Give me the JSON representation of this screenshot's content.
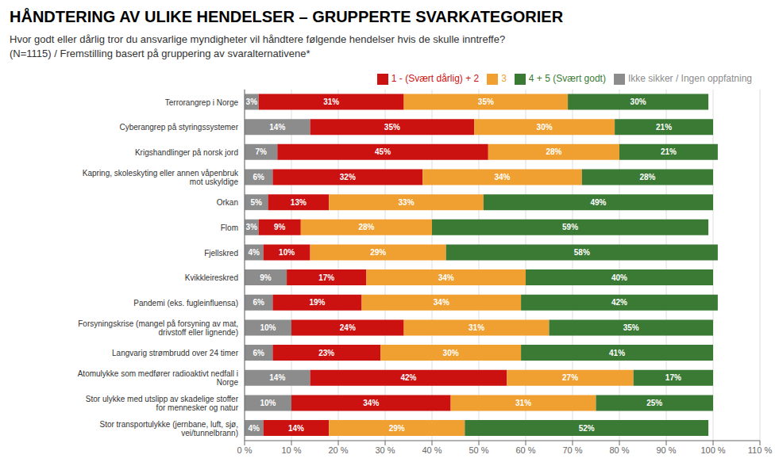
{
  "chart_data": {
    "type": "bar",
    "title": "HÅNDTERING AV ULIKE HENDELSER – GRUPPERTE SVARKATEGORIER",
    "subtitle": [
      "Hvor godt eller dårlig tror du ansvarlige myndigheter vil håndtere følgende hendelser hvis de skulle inntreffe?",
      "(N=1115) / Fremstilling basert på gruppering av svaralternativene*"
    ],
    "orientation": "horizontal",
    "stacked": true,
    "data_labels": true,
    "grid": true,
    "legend": "top",
    "categories": [
      "Terrorangrep i Norge",
      "Cyberangrep på styringssystemer",
      "Krigshandlinger på norsk jord",
      "Kapring, skoleskyting eller annen våpenbruk mot uskyldige",
      "Orkan",
      "Flom",
      "Fjellskred",
      "Kvikkleireskred",
      "Pandemi (eks. fugleinfluensa)",
      "Forsyningskrise (mangel på forsyning av mat, drivstoff eller lignende)",
      "Langvarig strømbrudd over 24 timer",
      "Atomulykke som medfører radioaktivt nedfall i Norge",
      "Stor ulykke med utslipp av skadelige stoffer for mennesker og natur",
      "Stor transportulykke (jernbane, luft, sjø, vei/tunnelbrann)"
    ],
    "series": [
      {
        "name": "Ikke sikker / Ingen oppfatning",
        "color": "#8c8c8c",
        "values": [
          3,
          14,
          7,
          6,
          5,
          3,
          4,
          9,
          6,
          10,
          6,
          14,
          10,
          4
        ],
        "value_labels": [
          "3%",
          "14%",
          "7%",
          "6%",
          "5%",
          "3%",
          "4%",
          "9%",
          "6%",
          "10%",
          "6%",
          "14%",
          "10%",
          "4%"
        ]
      },
      {
        "name": "1 - (Svært dårlig) + 2",
        "color": "#cc1111",
        "values": [
          31,
          35,
          45,
          32,
          13,
          9,
          10,
          17,
          19,
          24,
          23,
          42,
          34,
          14
        ],
        "value_labels": [
          "31%",
          "35%",
          "45%",
          "32%",
          "13%",
          "9%",
          "10%",
          "17%",
          "19%",
          "24%",
          "23%",
          "42%",
          "34%",
          "14%"
        ]
      },
      {
        "name": "3",
        "color": "#f0a030",
        "values": [
          35,
          30,
          28,
          34,
          33,
          28,
          29,
          34,
          34,
          31,
          30,
          27,
          31,
          29
        ],
        "value_labels": [
          "35%",
          "30%",
          "28%",
          "34%",
          "33%",
          "28%",
          "29%",
          "34%",
          "34%",
          "31%",
          "30%",
          "27%",
          "31%",
          "29%"
        ]
      },
      {
        "name": "4 + 5 (Svært godt)",
        "color": "#3a7a35",
        "values": [
          30,
          21,
          21,
          28,
          49,
          59,
          58,
          40,
          42,
          35,
          41,
          17,
          25,
          52
        ],
        "value_labels": [
          "30%",
          "21%",
          "21%",
          "28%",
          "49%",
          "59%",
          "58%",
          "40%",
          "42%",
          "35%",
          "41%",
          "17%",
          "25%",
          "52%"
        ]
      }
    ],
    "xlim": [
      0,
      110
    ],
    "xticks": [
      {
        "value": 0,
        "label": "0 %"
      },
      {
        "value": 10,
        "label": "10 %"
      },
      {
        "value": 20,
        "label": "20 %"
      },
      {
        "value": 30,
        "label": "30 %"
      },
      {
        "value": 40,
        "label": "40 %"
      },
      {
        "value": 50,
        "label": "50 %"
      },
      {
        "value": 60,
        "label": "60 %"
      },
      {
        "value": 70,
        "label": "70 %"
      },
      {
        "value": 80,
        "label": "80 %"
      },
      {
        "value": 90,
        "label": "90 %"
      },
      {
        "value": 100,
        "label": "100 %"
      },
      {
        "value": 110,
        "label": "110 %"
      }
    ]
  }
}
